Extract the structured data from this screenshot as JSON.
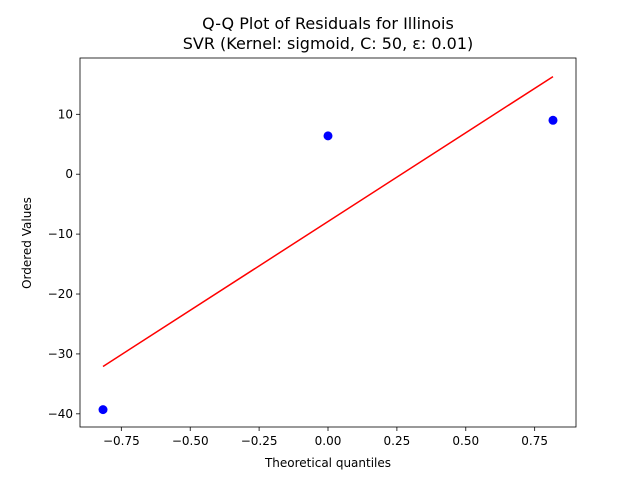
{
  "chart_data": {
    "type": "scatter",
    "title": "Q-Q Plot of Residuals for Illinois",
    "subtitle": "SVR (Kernel: sigmoid, C: 50, ε: 0.01)",
    "xlabel": "Theoretical quantiles",
    "ylabel": "Ordered Values",
    "xlim": [
      -0.9,
      0.9
    ],
    "ylim": [
      -42.2,
      19.4
    ],
    "xticks": [
      -0.75,
      -0.5,
      -0.25,
      0.0,
      0.25,
      0.5,
      0.75
    ],
    "xtick_labels": [
      "−0.75",
      "−0.50",
      "−0.25",
      "0.00",
      "0.25",
      "0.50",
      "0.75"
    ],
    "yticks": [
      -40,
      -30,
      -20,
      -10,
      0,
      10
    ],
    "ytick_labels": [
      "−40",
      "−30",
      "−20",
      "−10",
      "0",
      "10"
    ],
    "grid": false,
    "series": [
      {
        "kind": "points",
        "color": "#0000ff",
        "x": [
          -0.8165,
          0.0,
          0.8165
        ],
        "y": [
          -39.3,
          6.4,
          9.0
        ]
      },
      {
        "kind": "line",
        "color": "#ff0000",
        "x": [
          -0.8165,
          0.8165
        ],
        "y": [
          -32.1,
          16.3
        ]
      }
    ]
  }
}
